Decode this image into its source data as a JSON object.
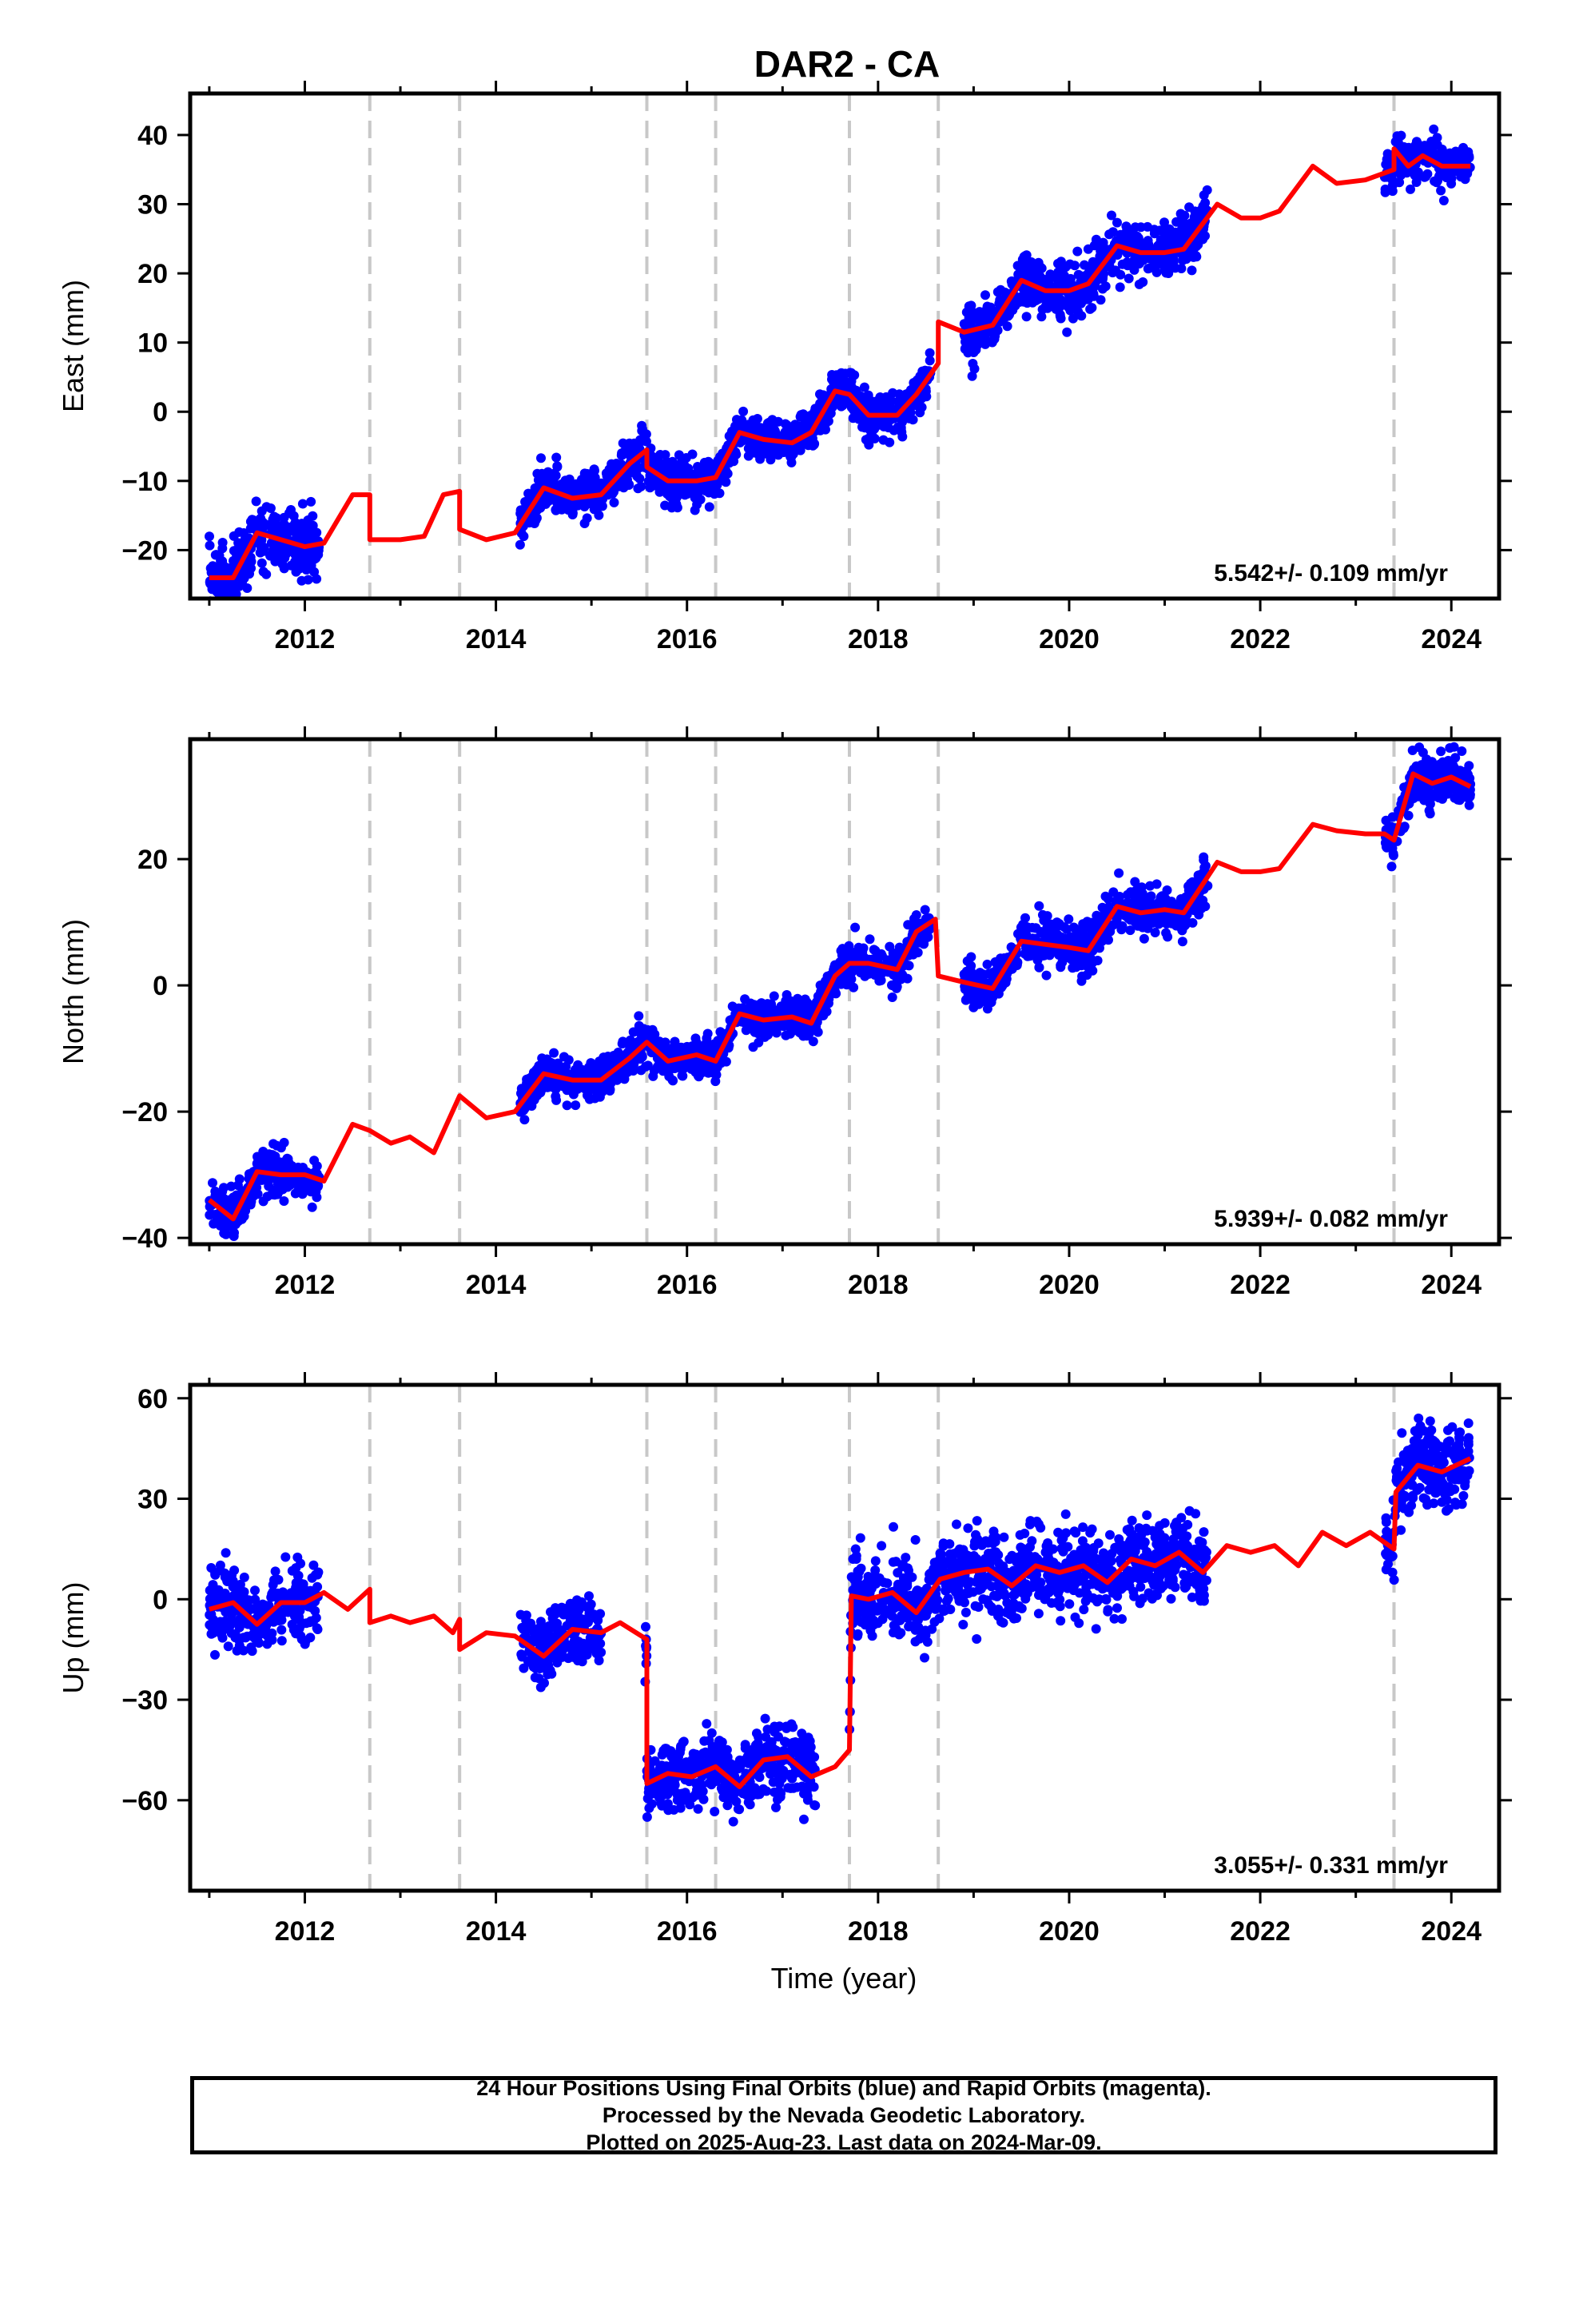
{
  "title": "DAR2 - CA",
  "xlabel": "Time (year)",
  "colors": {
    "data_points": "#0000ff",
    "model": "#ff0000",
    "event_lines": "#c8c8c8",
    "frame": "#000000"
  },
  "footer": {
    "line1": "24 Hour Positions Using Final Orbits (blue) and Rapid Orbits (magenta).",
    "line2": "Processed by the Nevada Geodetic Laboratory.",
    "line3": "Plotted on 2025-Aug-23. Last data on 2024-Mar-09."
  },
  "chart_data": [
    {
      "type": "scatter",
      "panel": "east",
      "ylabel": "East (mm)",
      "xlim": [
        2010.8,
        2024.5
      ],
      "ylim": [
        -27,
        46
      ],
      "x_ticks": [
        2012,
        2014,
        2016,
        2018,
        2020,
        2022,
        2024
      ],
      "y_ticks": [
        -20,
        -10,
        0,
        10,
        20,
        30,
        40
      ],
      "y_tick_labels": [
        "−20",
        "−10",
        "0",
        "10",
        "20",
        "30",
        "40"
      ],
      "rate_label": "5.542+/- 0.109 mm/yr",
      "event_lines": [
        2012.68,
        2013.62,
        2015.58,
        2016.3,
        2017.7,
        2018.63,
        2023.4
      ],
      "data_segments": [
        {
          "start": 2011.0,
          "end": 2012.15,
          "scatter": 2.2
        },
        {
          "start": 2014.25,
          "end": 2016.35,
          "scatter": 1.6
        },
        {
          "start": 2016.35,
          "end": 2018.55,
          "scatter": 1.5
        },
        {
          "start": 2018.9,
          "end": 2021.45,
          "scatter": 2.0
        },
        {
          "start": 2023.3,
          "end": 2024.2,
          "scatter": 1.5
        }
      ],
      "model": [
        [
          2011.0,
          -24
        ],
        [
          2011.25,
          -24
        ],
        [
          2011.5,
          -17.5
        ],
        [
          2011.75,
          -18.5
        ],
        [
          2012.0,
          -19.5
        ],
        [
          2012.2,
          -19
        ],
        [
          2012.5,
          -12
        ],
        [
          2012.68,
          -12
        ],
        [
          2012.68,
          -18.5
        ],
        [
          2013.0,
          -18.5
        ],
        [
          2013.25,
          -18
        ],
        [
          2013.45,
          -12
        ],
        [
          2013.62,
          -11.5
        ],
        [
          2013.62,
          -17
        ],
        [
          2013.9,
          -18.5
        ],
        [
          2014.2,
          -17.5
        ],
        [
          2014.5,
          -11
        ],
        [
          2014.8,
          -12.5
        ],
        [
          2015.1,
          -12
        ],
        [
          2015.4,
          -7.5
        ],
        [
          2015.58,
          -5.5
        ],
        [
          2015.58,
          -8
        ],
        [
          2015.8,
          -10
        ],
        [
          2016.1,
          -10
        ],
        [
          2016.3,
          -9.5
        ],
        [
          2016.55,
          -3
        ],
        [
          2016.8,
          -4
        ],
        [
          2017.1,
          -4.5
        ],
        [
          2017.3,
          -3
        ],
        [
          2017.55,
          3
        ],
        [
          2017.7,
          2.5
        ],
        [
          2017.9,
          -0.5
        ],
        [
          2018.2,
          -0.5
        ],
        [
          2018.4,
          2.5
        ],
        [
          2018.63,
          7
        ],
        [
          2018.63,
          13
        ],
        [
          2018.9,
          11.5
        ],
        [
          2019.2,
          12.5
        ],
        [
          2019.5,
          19
        ],
        [
          2019.75,
          17.5
        ],
        [
          2020.0,
          17.5
        ],
        [
          2020.2,
          18.5
        ],
        [
          2020.5,
          24
        ],
        [
          2020.75,
          23
        ],
        [
          2021.0,
          23
        ],
        [
          2021.2,
          23.5
        ],
        [
          2021.55,
          30
        ],
        [
          2021.8,
          28
        ],
        [
          2022.0,
          28
        ],
        [
          2022.2,
          29
        ],
        [
          2022.55,
          35.5
        ],
        [
          2022.8,
          33
        ],
        [
          2023.1,
          33.5
        ],
        [
          2023.3,
          34.5
        ],
        [
          2023.4,
          35
        ],
        [
          2023.4,
          38
        ],
        [
          2023.55,
          35.5
        ],
        [
          2023.7,
          37
        ],
        [
          2023.9,
          35.5
        ],
        [
          2024.2,
          35.5
        ]
      ]
    },
    {
      "type": "scatter",
      "panel": "north",
      "ylabel": "North (mm)",
      "xlim": [
        2010.8,
        2024.5
      ],
      "ylim": [
        -41,
        39
      ],
      "x_ticks": [
        2012,
        2014,
        2016,
        2018,
        2020,
        2022,
        2024
      ],
      "y_ticks": [
        -40,
        -20,
        0,
        20
      ],
      "y_tick_labels": [
        "−40",
        "−20",
        "0",
        "20"
      ],
      "rate_label": "5.939+/- 0.082 mm/yr",
      "event_lines": [
        2012.68,
        2013.62,
        2015.58,
        2016.3,
        2017.7,
        2018.63,
        2023.4
      ],
      "data_segments": [
        {
          "start": 2011.0,
          "end": 2012.15,
          "scatter": 1.8
        },
        {
          "start": 2014.25,
          "end": 2016.35,
          "scatter": 1.5
        },
        {
          "start": 2016.35,
          "end": 2018.55,
          "scatter": 1.5
        },
        {
          "start": 2018.9,
          "end": 2021.45,
          "scatter": 1.8
        },
        {
          "start": 2023.3,
          "end": 2024.2,
          "scatter": 1.8
        }
      ],
      "model": [
        [
          2011.0,
          -34
        ],
        [
          2011.25,
          -37
        ],
        [
          2011.5,
          -29.5
        ],
        [
          2011.75,
          -30
        ],
        [
          2012.0,
          -30
        ],
        [
          2012.2,
          -31
        ],
        [
          2012.5,
          -22
        ],
        [
          2012.68,
          -23
        ],
        [
          2012.9,
          -25
        ],
        [
          2013.1,
          -24
        ],
        [
          2013.35,
          -26.5
        ],
        [
          2013.62,
          -17.5
        ],
        [
          2013.9,
          -21
        ],
        [
          2014.2,
          -20
        ],
        [
          2014.5,
          -14
        ],
        [
          2014.8,
          -15
        ],
        [
          2015.1,
          -15
        ],
        [
          2015.4,
          -11.5
        ],
        [
          2015.58,
          -9
        ],
        [
          2015.8,
          -12
        ],
        [
          2016.1,
          -11
        ],
        [
          2016.3,
          -12
        ],
        [
          2016.55,
          -4.5
        ],
        [
          2016.8,
          -5.5
        ],
        [
          2017.1,
          -5
        ],
        [
          2017.3,
          -6
        ],
        [
          2017.55,
          1.5
        ],
        [
          2017.7,
          3.5
        ],
        [
          2017.9,
          3.5
        ],
        [
          2018.2,
          2.5
        ],
        [
          2018.4,
          8.5
        ],
        [
          2018.6,
          10.5
        ],
        [
          2018.63,
          1.5
        ],
        [
          2018.9,
          0.5
        ],
        [
          2019.2,
          -0.5
        ],
        [
          2019.5,
          7
        ],
        [
          2019.75,
          6.5
        ],
        [
          2020.0,
          6
        ],
        [
          2020.2,
          5.5
        ],
        [
          2020.5,
          12.5
        ],
        [
          2020.75,
          11.5
        ],
        [
          2021.0,
          12
        ],
        [
          2021.2,
          11.5
        ],
        [
          2021.55,
          19.5
        ],
        [
          2021.8,
          18
        ],
        [
          2022.0,
          18
        ],
        [
          2022.2,
          18.5
        ],
        [
          2022.55,
          25.5
        ],
        [
          2022.8,
          24.5
        ],
        [
          2023.1,
          24
        ],
        [
          2023.3,
          24
        ],
        [
          2023.4,
          23
        ],
        [
          2023.6,
          33.5
        ],
        [
          2023.8,
          32
        ],
        [
          2024.0,
          33
        ],
        [
          2024.2,
          31.5
        ]
      ]
    },
    {
      "type": "scatter",
      "panel": "up",
      "ylabel": "Up (mm)",
      "xlim": [
        2010.8,
        2024.5
      ],
      "ylim": [
        -87,
        64
      ],
      "x_ticks": [
        2012,
        2014,
        2016,
        2018,
        2020,
        2022,
        2024
      ],
      "y_ticks": [
        -60,
        -30,
        0,
        30,
        60
      ],
      "y_tick_labels": [
        "−60",
        "−30",
        "0",
        "30",
        "60"
      ],
      "rate_label": "3.055+/- 0.331 mm/yr",
      "event_lines": [
        2012.68,
        2013.62,
        2015.58,
        2016.3,
        2017.7,
        2018.63,
        2023.4
      ],
      "data_segments": [
        {
          "start": 2011.0,
          "end": 2012.15,
          "scatter": 5.5
        },
        {
          "start": 2014.25,
          "end": 2015.1,
          "scatter": 5.0
        },
        {
          "start": 2015.55,
          "end": 2017.35,
          "scatter": 5.0
        },
        {
          "start": 2017.7,
          "end": 2021.45,
          "scatter": 6.0
        },
        {
          "start": 2023.3,
          "end": 2024.2,
          "scatter": 6.0
        }
      ],
      "model": [
        [
          2011.0,
          -3
        ],
        [
          2011.25,
          -1
        ],
        [
          2011.5,
          -7.5
        ],
        [
          2011.75,
          -1
        ],
        [
          2012.0,
          -1
        ],
        [
          2012.2,
          2
        ],
        [
          2012.45,
          -3
        ],
        [
          2012.68,
          3
        ],
        [
          2012.68,
          -7
        ],
        [
          2012.9,
          -5
        ],
        [
          2013.1,
          -7
        ],
        [
          2013.35,
          -5
        ],
        [
          2013.55,
          -10
        ],
        [
          2013.62,
          -6
        ],
        [
          2013.62,
          -15
        ],
        [
          2013.9,
          -10
        ],
        [
          2014.2,
          -11
        ],
        [
          2014.5,
          -17
        ],
        [
          2014.8,
          -9
        ],
        [
          2015.1,
          -10
        ],
        [
          2015.3,
          -7
        ],
        [
          2015.58,
          -12
        ],
        [
          2015.58,
          -55
        ],
        [
          2015.8,
          -52
        ],
        [
          2016.05,
          -53
        ],
        [
          2016.3,
          -50
        ],
        [
          2016.55,
          -56
        ],
        [
          2016.8,
          -48
        ],
        [
          2017.05,
          -47
        ],
        [
          2017.3,
          -53
        ],
        [
          2017.55,
          -50
        ],
        [
          2017.7,
          -45
        ],
        [
          2017.72,
          1
        ],
        [
          2017.9,
          0
        ],
        [
          2018.15,
          2
        ],
        [
          2018.4,
          -4
        ],
        [
          2018.65,
          6
        ],
        [
          2018.9,
          8
        ],
        [
          2019.15,
          9
        ],
        [
          2019.4,
          4
        ],
        [
          2019.65,
          10
        ],
        [
          2019.9,
          8
        ],
        [
          2020.15,
          10
        ],
        [
          2020.4,
          5
        ],
        [
          2020.65,
          12
        ],
        [
          2020.9,
          10
        ],
        [
          2021.15,
          14
        ],
        [
          2021.4,
          8
        ],
        [
          2021.65,
          16
        ],
        [
          2021.9,
          14
        ],
        [
          2022.15,
          16
        ],
        [
          2022.4,
          10
        ],
        [
          2022.65,
          20
        ],
        [
          2022.9,
          16
        ],
        [
          2023.15,
          20
        ],
        [
          2023.4,
          15
        ],
        [
          2023.42,
          32
        ],
        [
          2023.65,
          40
        ],
        [
          2023.9,
          38
        ],
        [
          2024.2,
          42
        ]
      ]
    }
  ]
}
